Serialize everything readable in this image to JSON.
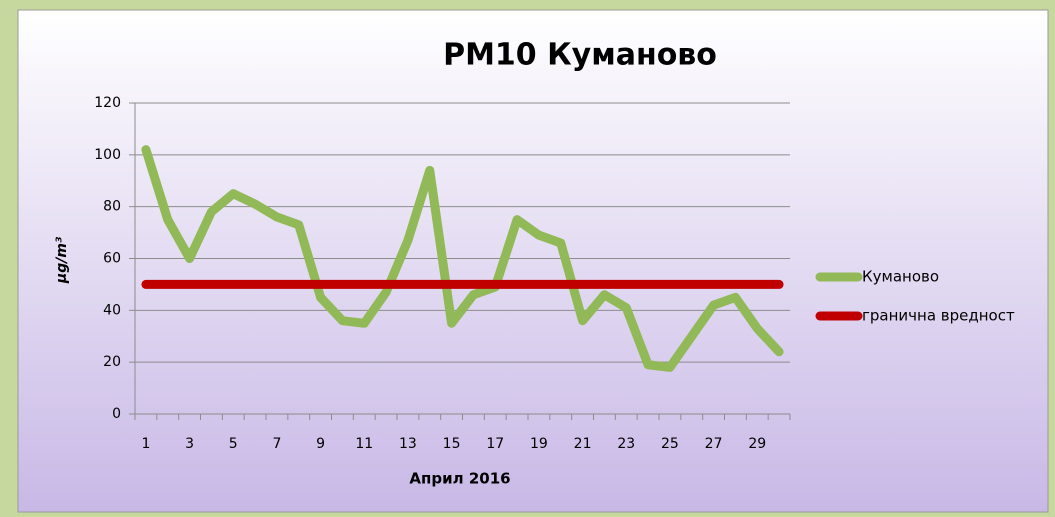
{
  "chart_data": {
    "type": "line",
    "title": "PM10 Куманово",
    "x_label": "Април 2016",
    "y_label": "µg/m³",
    "categories": [
      "1",
      null,
      "3",
      null,
      "5",
      null,
      "7",
      null,
      "9",
      null,
      "11",
      null,
      "13",
      null,
      "15",
      null,
      "17",
      null,
      "19",
      null,
      "21",
      null,
      "23",
      null,
      "25",
      null,
      "27",
      null,
      "29",
      null
    ],
    "series": [
      {
        "name": "Куманово",
        "color": "#92b957",
        "values": [
          102,
          75,
          60,
          78,
          85,
          81,
          76,
          73,
          45,
          36,
          35,
          47,
          67,
          94,
          35,
          46,
          49,
          75,
          69,
          66,
          36,
          46,
          41,
          19,
          18,
          30,
          42,
          45,
          33,
          24
        ]
      },
      {
        "name": "гранична вредност",
        "color": "#c00000",
        "values": [
          50,
          50,
          50,
          50,
          50,
          50,
          50,
          50,
          50,
          50,
          50,
          50,
          50,
          50,
          50,
          50,
          50,
          50,
          50,
          50,
          50,
          50,
          50,
          50,
          50,
          50,
          50,
          50,
          50,
          50
        ]
      }
    ],
    "ylim": [
      0,
      120
    ],
    "yticks": [
      0,
      20,
      40,
      60,
      80,
      100,
      120
    ],
    "grid": true,
    "legend": "right"
  }
}
